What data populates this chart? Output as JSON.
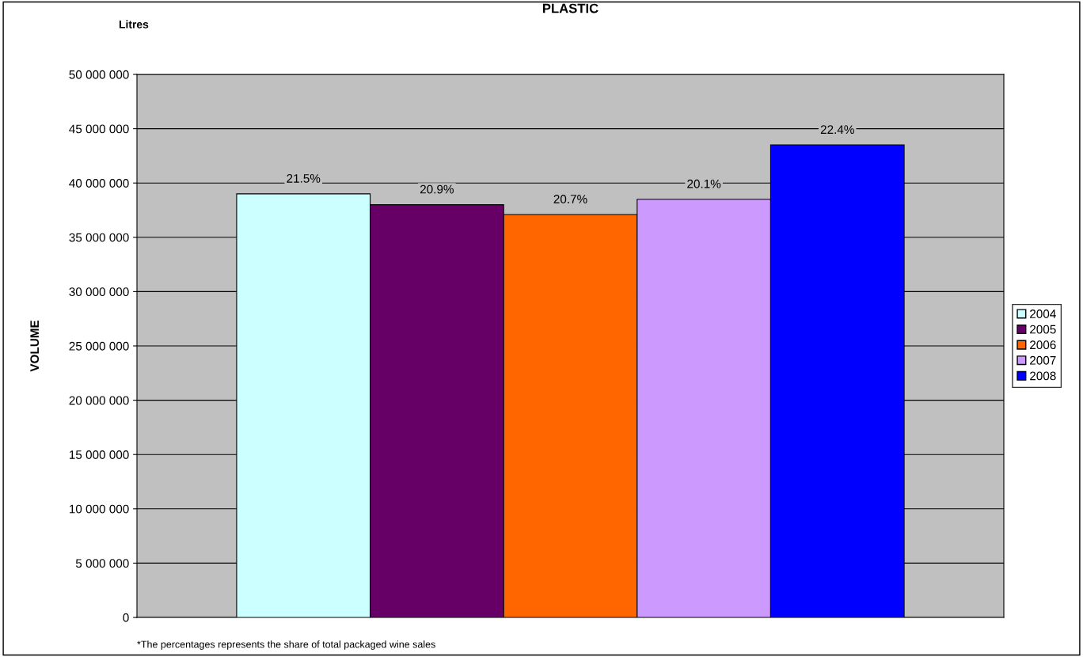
{
  "chart_data": {
    "type": "bar",
    "title": "PLASTIC",
    "ylabel": "VOLUME",
    "categories": [
      null
    ],
    "series": [
      {
        "name": "2004",
        "color": "#ccffff",
        "values": [
          39000000
        ]
      },
      {
        "name": "2005",
        "color": "#660066",
        "values": [
          38000000
        ]
      },
      {
        "name": "2006",
        "color": "#ff6600",
        "values": [
          37100000
        ]
      },
      {
        "name": "2007",
        "color": "#cc99ff",
        "values": [
          38500000
        ]
      },
      {
        "name": "2008",
        "color": "#0000ff",
        "values": [
          43500000
        ]
      }
    ],
    "ylim": [
      0,
      50000000
    ],
    "yticks": [
      {
        "value": 0,
        "label": "0"
      },
      {
        "value": 5000000,
        "label": "5 000 000"
      },
      {
        "value": 10000000,
        "label": "10 000 000"
      },
      {
        "value": 15000000,
        "label": "15 000 000"
      },
      {
        "value": 20000000,
        "label": "20 000 000"
      },
      {
        "value": 25000000,
        "label": "25 000 000"
      },
      {
        "value": 30000000,
        "label": "30 000 000"
      },
      {
        "value": 35000000,
        "label": "35 000 000"
      },
      {
        "value": 40000000,
        "label": "40 000 000"
      },
      {
        "value": 45000000,
        "label": "45 000 000"
      },
      {
        "value": 50000000,
        "label": "50 000 000"
      }
    ],
    "grid": "y",
    "legend": "right",
    "annotations": [
      "Litres",
      "*The percentages represents the share of total packaged wine sales",
      {
        "text": "21.5%",
        "y": 39000000
      },
      {
        "text": "20.9%",
        "y": 38000000
      },
      {
        "text": "20.7%",
        "y": 37100000
      },
      {
        "text": "20.1%",
        "y": 38500000
      },
      {
        "text": "22.4%",
        "y": 43500000
      }
    ]
  }
}
